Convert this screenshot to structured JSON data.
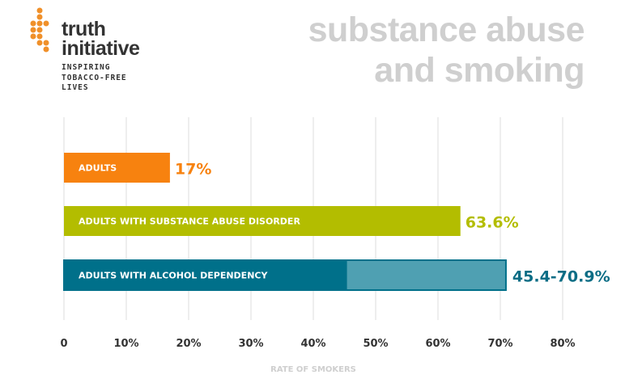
{
  "logo": {
    "name_line1": "truth",
    "name_line2": "initiative",
    "tagline": [
      "INSPIRING",
      "TOBACCO-FREE",
      "LIVES"
    ],
    "color": "#F0902A"
  },
  "title": {
    "line1": "substance abuse",
    "line2": "and smoking"
  },
  "chart_data": {
    "type": "bar",
    "orientation": "horizontal",
    "title": "substance abuse and smoking",
    "xlabel": "RATE OF SMOKERS",
    "xlim": [
      0,
      80
    ],
    "xticks": [
      0,
      10,
      20,
      30,
      40,
      50,
      60,
      70,
      80
    ],
    "xtick_labels": [
      "0",
      "10%",
      "20%",
      "30%",
      "40%",
      "50%",
      "60%",
      "70%",
      "80%"
    ],
    "grid": true,
    "categories": [
      "ADULTS",
      "ADULTS WITH SUBSTANCE ABUSE DISORDER",
      "ADULTS WITH ALCOHOL DEPENDENCY"
    ],
    "bars": [
      {
        "label": "ADULTS",
        "value": 17,
        "value_label": "17%",
        "color": "#F7820F"
      },
      {
        "label": "ADULTS WITH SUBSTANCE ABUSE DISORDER",
        "value": 63.6,
        "value_label": "63.6%",
        "color": "#B3BD00"
      },
      {
        "label": "ADULTS WITH ALCOHOL DEPENDENCY",
        "range": [
          45.4,
          70.9
        ],
        "value_label": "45.4-70.9%",
        "color": "#00708A",
        "range_color": "#4FA0B2",
        "label_color": "#0B6D85"
      }
    ]
  }
}
